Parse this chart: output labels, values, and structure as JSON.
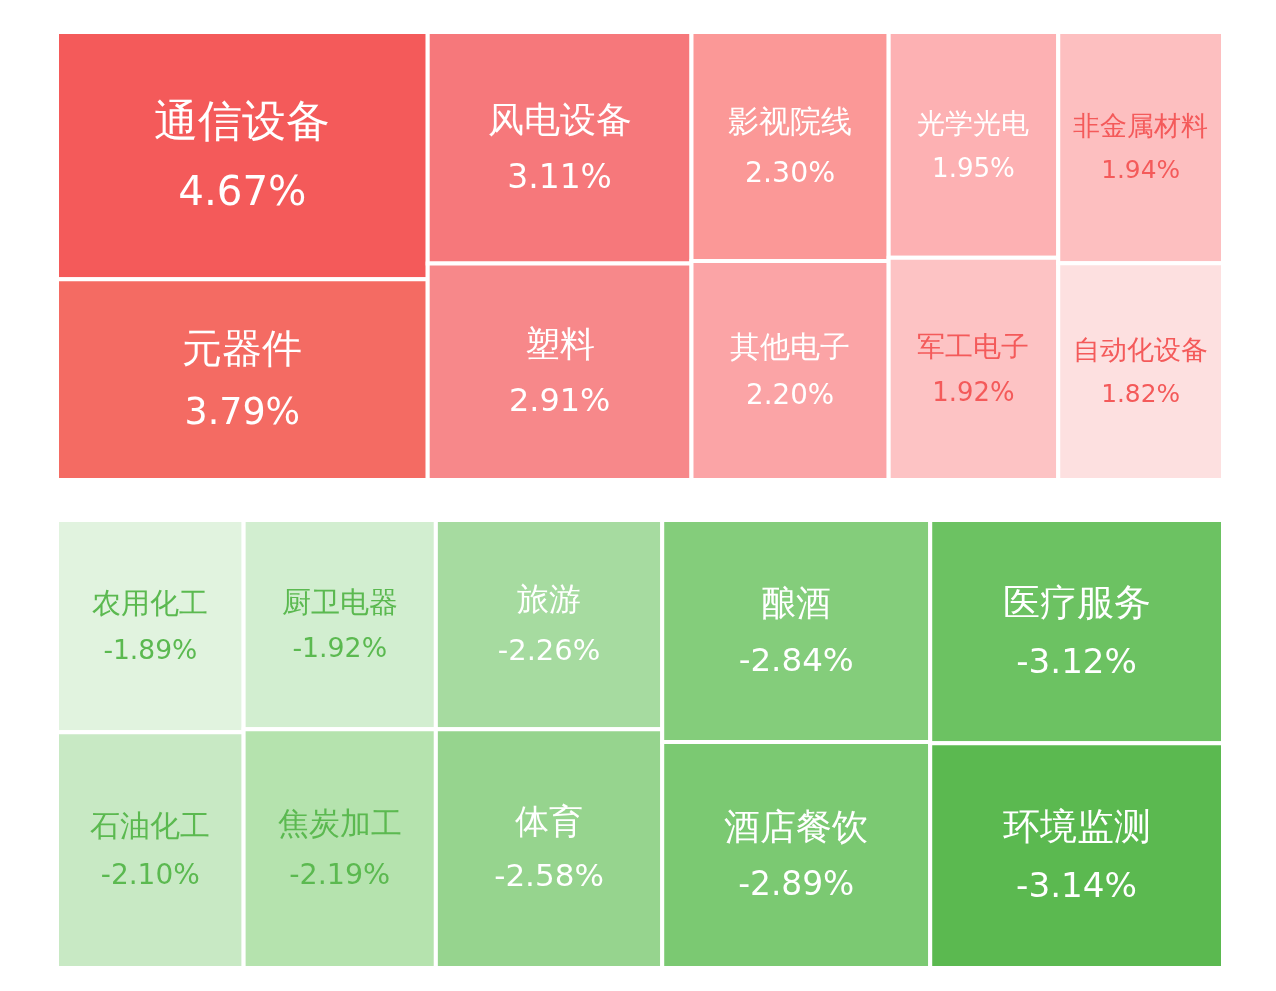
{
  "chart_data": [
    {
      "type": "other",
      "categories": [
        "通信设备",
        "元器件",
        "风电设备",
        "塑料",
        "影视院线",
        "其他电子",
        "光学光电",
        "军工电子",
        "非金属材料",
        "自动化设备"
      ],
      "values": [
        4.67,
        3.79,
        3.11,
        2.91,
        2.3,
        2.2,
        1.95,
        1.92,
        1.94,
        1.82
      ],
      "value_labels": [
        "4.67%",
        "3.79%",
        "3.11%",
        "2.91%",
        "2.30%",
        "2.20%",
        "1.95%",
        "1.92%",
        "1.94%",
        "1.82%"
      ],
      "colors": [
        "#f45a5a",
        "#f46b63",
        "#f6787b",
        "#f7888a",
        "#fb9897",
        "#fba4a6",
        "#fdb1b3",
        "#fdc3c4",
        "#fdbfc0",
        "#fde0e0"
      ]
    },
    {
      "type": "other",
      "categories": [
        "农用化工",
        "石油化工",
        "厨卫电器",
        "焦炭加工",
        "旅游",
        "体育",
        "酿酒",
        "酒店餐饮",
        "医疗服务",
        "环境监测"
      ],
      "values": [
        -1.89,
        -2.1,
        -1.92,
        -2.19,
        -2.26,
        -2.58,
        -2.84,
        -2.89,
        -3.12,
        -3.14
      ],
      "value_labels": [
        "-1.89%",
        "-2.10%",
        "-1.92%",
        "-2.19%",
        "-2.26%",
        "-2.58%",
        "-2.84%",
        "-2.89%",
        "-3.12%",
        "-3.14%"
      ],
      "colors": [
        "#e1f3df",
        "#c8e9c4",
        "#d2eed0",
        "#b5e3ae",
        "#a6dba0",
        "#96d48e",
        "#84cd7b",
        "#7bc972",
        "#6cc262",
        "#5bb950"
      ]
    }
  ]
}
